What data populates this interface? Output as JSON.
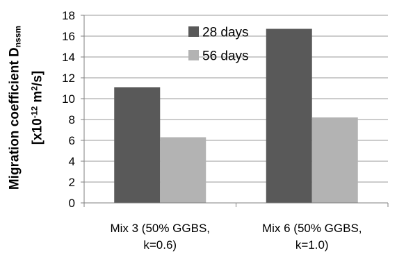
{
  "chart_data": {
    "type": "bar",
    "categories": [
      [
        "Mix 3 (50% GGBS,",
        "k=0.6)"
      ],
      [
        "Mix 6 (50% GGBS,",
        "k=1.0)"
      ]
    ],
    "series": [
      {
        "name": "28 days",
        "color": "#595959",
        "values": [
          11.1,
          16.7
        ]
      },
      {
        "name": "56 days",
        "color": "#b3b3b3",
        "values": [
          6.3,
          8.2
        ]
      }
    ],
    "ylabel": {
      "line1_main": "Migration coefficient D",
      "line1_sub": "nssm",
      "line2_pre": "[x10",
      "line2_sup1": "-12",
      "line2_mid": " m",
      "line2_sup2": "2",
      "line2_post": "/s]"
    },
    "ylim": [
      0,
      18
    ],
    "yticks": [
      0,
      2,
      4,
      6,
      8,
      10,
      12,
      14,
      16,
      18
    ],
    "grid": true,
    "legend_position": "top-center"
  }
}
